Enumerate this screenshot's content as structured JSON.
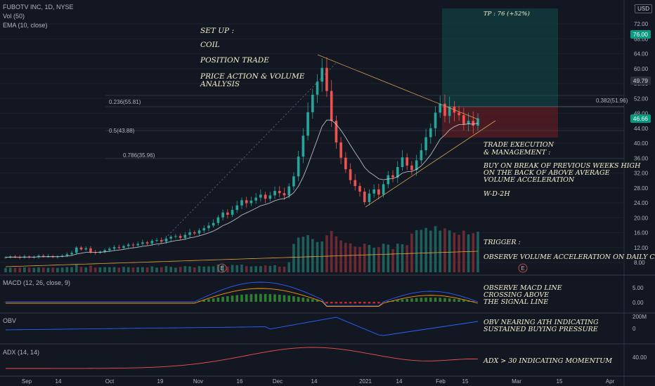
{
  "header": {
    "symbol_line": "FUBOTV INC, 1D, NYSE",
    "vol_line": "Vol (50)",
    "ema_line": "EMA (10, close)",
    "currency": "USD",
    "top_right_clip": "7"
  },
  "annotations": {
    "setup": [
      "SET UP :",
      "COIL",
      "POSITION TRADE",
      "PRICE ACTION & VOLUME",
      "ANALYSIS"
    ],
    "execution": [
      "TRADE EXECUTION",
      "& MANAGEMENT :",
      "BUY ON BREAK OF PREVIOUS WEEKS HIGH",
      "ON THE BACK OF ABOVE AVERAGE",
      "VOLUME ACCELERATION",
      "W-D-2H"
    ],
    "trigger": [
      "TRIGGER :",
      "OBSERVE VOLUME ACCELERATION ON DAILY CHART"
    ],
    "tp_label": "TP : 76 (+52%)",
    "macd_note": [
      "OBSERVE MACD LINE",
      "CROSSING ABOVE",
      "THE SIGNAL LINE"
    ],
    "obv_note": [
      "OBV NEARING ATH INDICATING",
      "SUSTAINED BUYING PRESSURE"
    ],
    "adx_note": "ADX > 30 INDICATING MOMENTUM",
    "fib_labels": [
      "0.236(55.81)",
      "0.382(51.96)",
      "0.5(43.88)",
      "0.786(35.96)"
    ],
    "event_marker": "E"
  },
  "price_tags": [
    {
      "value": "76.00",
      "color": "#089981"
    },
    {
      "value": "49.79",
      "color": "#2a2e39"
    },
    {
      "value": "46.66",
      "color": "#089981"
    }
  ],
  "panels": {
    "macd_title": "MACD (12, 26, close, 9)",
    "obv_title": "OBV",
    "adx_title": "ADX (14, 14)"
  },
  "chart_data": {
    "type": "candlestick",
    "price_axis": [
      72.0,
      68.0,
      64.0,
      60.0,
      56.0,
      52.0,
      48.0,
      44.0,
      40.0,
      36.0,
      32.0,
      28.0,
      24.0,
      20.0,
      16.0,
      12.0,
      8.0
    ],
    "price_axis_labels": [
      "72.00",
      "68.00",
      "64.00",
      "60.00",
      "56.00",
      "52.00",
      "48.00",
      "44.00",
      "40.00",
      "36.00",
      "32.00",
      "28.00",
      "24.00",
      "20.00",
      "16.00",
      "12.00",
      "8.00"
    ],
    "macd_axis_labels": [
      "5.00",
      "0.00"
    ],
    "obv_axis_labels": [
      "200M",
      "0"
    ],
    "adx_axis_labels": [
      "40.00"
    ],
    "x_axis_labels": [
      "Sep",
      "14",
      "Oct",
      "19",
      "Nov",
      "16",
      "Dec",
      "14",
      "2021",
      "14",
      "Feb",
      "15",
      "Mar",
      "15",
      "Apr"
    ],
    "close_series": [
      9.4,
      9.6,
      9.5,
      9.3,
      9.6,
      9.4,
      9.5,
      9.8,
      9.6,
      9.7,
      9.5,
      9.6,
      9.8,
      10.2,
      10.6,
      12.0,
      11.5,
      11.8,
      10.8,
      10.6,
      10.9,
      11.3,
      11.7,
      12.1,
      11.9,
      12.4,
      12.8,
      12.6,
      13.0,
      13.4,
      13.1,
      13.8,
      14.0,
      13.6,
      14.4,
      14.9,
      15.1,
      14.6,
      15.4,
      16.1,
      15.8,
      16.6,
      17.2,
      17.9,
      18.6,
      20.1,
      21.4,
      20.8,
      22.1,
      23.3,
      24.7,
      23.9,
      24.6,
      25.4,
      26.2,
      25.1,
      26.0,
      27.2,
      26.6,
      26.0,
      28.4,
      31.1,
      36.4,
      42.0,
      48.3,
      53.0,
      56.5,
      60.2,
      54.0,
      46.0,
      40.2,
      36.1,
      33.0,
      30.1,
      28.5,
      27.0,
      24.2,
      26.5,
      27.6,
      26.2,
      29.0,
      31.4,
      30.8,
      33.6,
      36.2,
      34.0,
      32.8,
      35.4,
      38.1,
      41.6,
      44.0,
      48.2,
      50.6,
      47.3,
      49.8,
      48.2,
      47.5,
      45.1,
      46.0,
      44.7,
      46.66
    ],
    "ema_series": "EMA (10, close)",
    "volume_avg_line": "Vol (50)",
    "tp": 76.0,
    "entry": 49.79,
    "last": 46.66
  }
}
